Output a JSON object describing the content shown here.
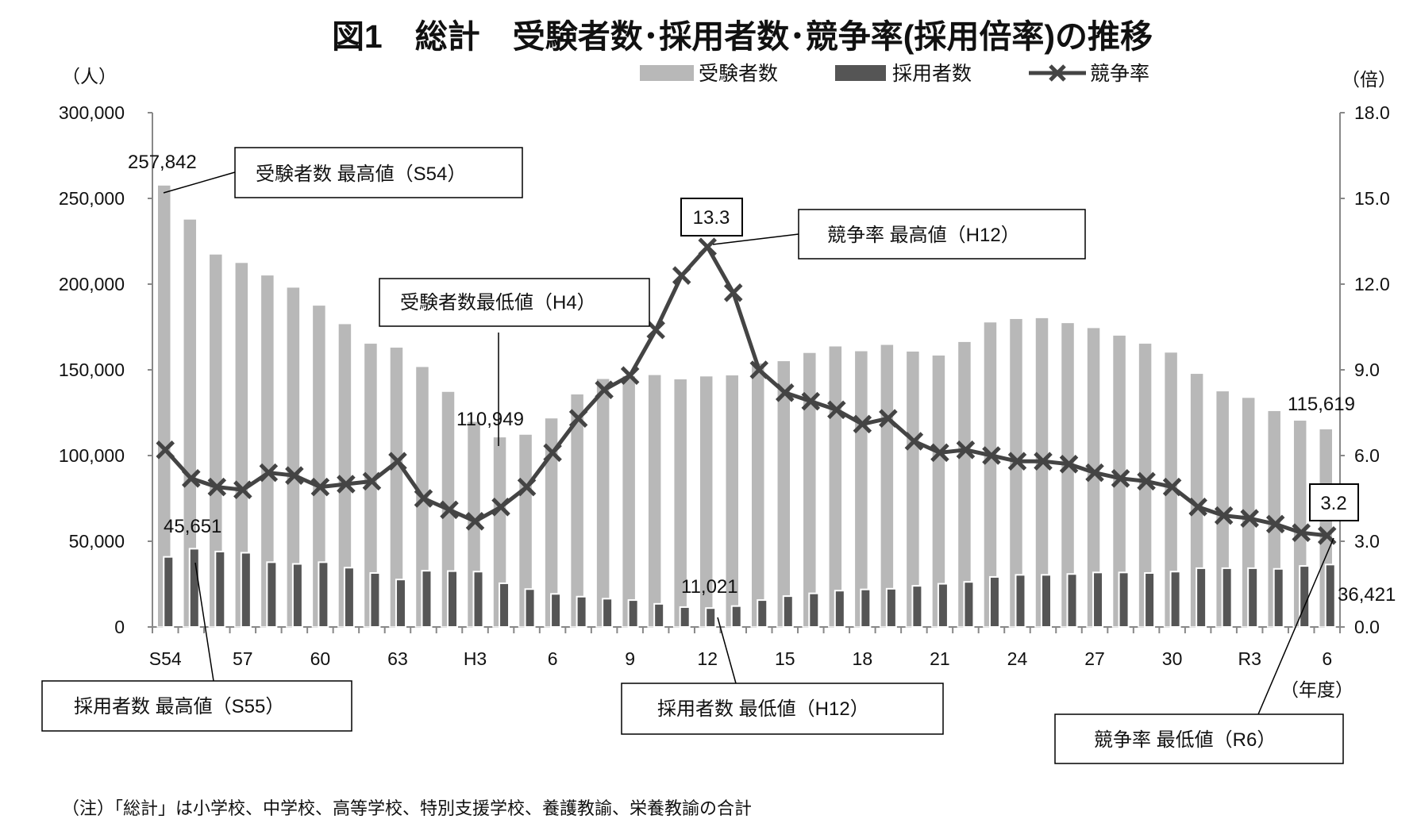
{
  "chart_data": {
    "type": "bar",
    "title": "図1　総計　受験者数･採用者数･競争率(採用倍率)の推移",
    "ylabel_left": "（人）",
    "ylabel_right": "（倍）",
    "xlabel": "（年度）",
    "ylim_left": [
      0,
      300000
    ],
    "ylim_right": [
      0,
      18
    ],
    "yticks_left": [
      "0",
      "50,000",
      "100,000",
      "150,000",
      "200,000",
      "250,000",
      "300,000"
    ],
    "yticks_right": [
      "0.0",
      "3.0",
      "6.0",
      "9.0",
      "12.0",
      "15.0",
      "18.0"
    ],
    "categories": [
      "S54",
      "S55",
      "S56",
      "S57",
      "S58",
      "S59",
      "S60",
      "S61",
      "S62",
      "S63",
      "H1",
      "H2",
      "H3",
      "H4",
      "H5",
      "H6",
      "H7",
      "H8",
      "H9",
      "H10",
      "H11",
      "H12",
      "H13",
      "H14",
      "H15",
      "H16",
      "H17",
      "H18",
      "H19",
      "H20",
      "H21",
      "H22",
      "H23",
      "H24",
      "H25",
      "H26",
      "H27",
      "H28",
      "H29",
      "H30",
      "R1",
      "R2",
      "R3",
      "R4",
      "R5",
      "R6"
    ],
    "xtick_labels": [
      {
        "index": 0,
        "label": "S54"
      },
      {
        "index": 3,
        "label": "57"
      },
      {
        "index": 6,
        "label": "60"
      },
      {
        "index": 9,
        "label": "63"
      },
      {
        "index": 12,
        "label": "H3"
      },
      {
        "index": 15,
        "label": "6"
      },
      {
        "index": 18,
        "label": "9"
      },
      {
        "index": 21,
        "label": "12"
      },
      {
        "index": 24,
        "label": "15"
      },
      {
        "index": 27,
        "label": "18"
      },
      {
        "index": 30,
        "label": "21"
      },
      {
        "index": 33,
        "label": "24"
      },
      {
        "index": 36,
        "label": "27"
      },
      {
        "index": 39,
        "label": "30"
      },
      {
        "index": 42,
        "label": "R3"
      },
      {
        "index": 45,
        "label": "6"
      }
    ],
    "legend_position": "top-right",
    "series": [
      {
        "name": "受験者数",
        "type": "bar",
        "axis": "left",
        "color": "#b8b8b8",
        "values": [
          257842,
          238000,
          217600,
          212700,
          205400,
          198300,
          187800,
          177000,
          165600,
          163300,
          152000,
          137500,
          120000,
          110949,
          112500,
          122000,
          136000,
          145000,
          146600,
          147300,
          144800,
          146500,
          147100,
          154000,
          155400,
          160200,
          164000,
          161200,
          164900,
          161000,
          158700,
          166600,
          178000,
          180000,
          180500,
          177600,
          174700,
          170300,
          165600,
          160400,
          148000,
          137800,
          134000,
          126300,
          120700,
          115619
        ]
      },
      {
        "name": "採用者数",
        "type": "bar",
        "axis": "left",
        "color": "#555555",
        "values": [
          40900,
          45651,
          44000,
          43300,
          37800,
          36800,
          37800,
          34600,
          31500,
          27700,
          32800,
          32600,
          32300,
          25500,
          22100,
          19300,
          17700,
          16500,
          15700,
          13500,
          11600,
          11021,
          12200,
          15700,
          18000,
          19600,
          21200,
          21900,
          22300,
          24000,
          25200,
          26300,
          29200,
          30400,
          30400,
          30900,
          31800,
          31800,
          31500,
          32300,
          34300,
          34300,
          34300,
          33900,
          35600,
          36421
        ]
      },
      {
        "name": "競争率",
        "type": "line",
        "axis": "right",
        "color": "#444444",
        "values": [
          6.2,
          5.2,
          4.9,
          4.8,
          5.4,
          5.3,
          4.9,
          5.0,
          5.1,
          5.8,
          4.5,
          4.1,
          3.7,
          4.2,
          4.9,
          6.1,
          7.3,
          8.3,
          8.8,
          10.4,
          12.3,
          13.3,
          11.7,
          9.0,
          8.2,
          7.9,
          7.6,
          7.1,
          7.3,
          6.5,
          6.1,
          6.2,
          6.0,
          5.8,
          5.8,
          5.7,
          5.4,
          5.2,
          5.1,
          4.9,
          4.2,
          3.9,
          3.8,
          3.6,
          3.3,
          3.2
        ]
      }
    ],
    "data_labels": {
      "applicants_max": "257,842",
      "applicants_min": "110,949",
      "applicants_last": "115,619",
      "hires_max": "45,651",
      "hires_min": "11,021",
      "hires_last": "36,421",
      "ratio_max": "13.3",
      "ratio_last": "3.2"
    },
    "annotations": {
      "applicants_max": "受験者数 最高値（S54）",
      "applicants_min": "受験者数最低値（H4）",
      "ratio_max": "競争率 最高値（H12）",
      "hires_max": "採用者数 最高値（S55）",
      "hires_min": "採用者数 最低値（H12）",
      "ratio_min": "競争率 最低値（R6）"
    },
    "note": "（注）「総計」は小学校、中学校、高等学校、特別支援学校、養護教諭、栄養教諭の合計"
  }
}
